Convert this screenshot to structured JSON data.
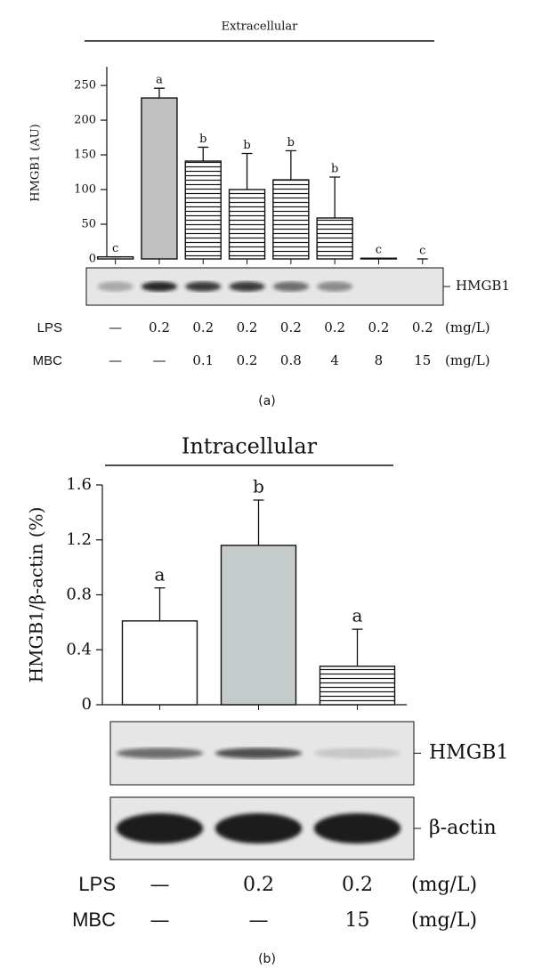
{
  "chart_data": [
    {
      "type": "bar",
      "panel": "(a)",
      "title": "Extracellular",
      "y_label": "HMGB1 (AU)",
      "categories": [
        null,
        null,
        null,
        null,
        null,
        null,
        null,
        null
      ],
      "values": [
        3,
        232,
        141,
        100,
        114,
        59,
        1,
        0
      ],
      "errors": [
        0,
        14,
        20,
        52,
        42,
        59,
        0,
        0
      ],
      "letters": [
        "c",
        "a",
        "b",
        "b",
        "b",
        "b",
        "c",
        "c"
      ],
      "fills": [
        "#ffffff",
        "#c0c0c0",
        "hatch",
        "hatch",
        "hatch",
        "hatch",
        "hatch",
        "hatch"
      ],
      "ylim": [
        0,
        277
      ],
      "yticks": [
        0,
        50,
        100,
        150,
        200,
        250
      ],
      "blots": [
        "HMGB1"
      ],
      "conditions": [
        {
          "name": "LPS",
          "labels": [
            "—",
            "0.2",
            "0.2",
            "0.2",
            "0.2",
            "0.2",
            "0.2",
            "0.2"
          ],
          "unit": "(mg/L)"
        },
        {
          "name": "MBC",
          "labels": [
            "—",
            "—",
            "0.1",
            "0.2",
            "0.8",
            "4",
            "8",
            "15"
          ],
          "unit": "(mg/L)"
        }
      ]
    },
    {
      "type": "bar",
      "panel": "(b)",
      "title": "Intracellular",
      "y_label": "HMGB1/β-actin (%)",
      "categories": [
        null,
        null,
        null
      ],
      "values": [
        0.61,
        1.16,
        0.28
      ],
      "errors": [
        0.24,
        0.33,
        0.27
      ],
      "letters": [
        "a",
        "b",
        "a"
      ],
      "fills": [
        "#ffffff",
        "#c5cbcb",
        "hatch"
      ],
      "ylim": [
        0,
        1.6
      ],
      "yticks": [
        0,
        0.4,
        0.8,
        1.2,
        1.6
      ],
      "blots": [
        "HMGB1",
        "β-actin"
      ],
      "conditions": [
        {
          "name": "LPS",
          "labels": [
            "—",
            "0.2",
            "0.2"
          ],
          "unit": "(mg/L)"
        },
        {
          "name": "MBC",
          "labels": [
            "—",
            "—",
            "15"
          ],
          "unit": "(mg/L)"
        }
      ]
    }
  ]
}
